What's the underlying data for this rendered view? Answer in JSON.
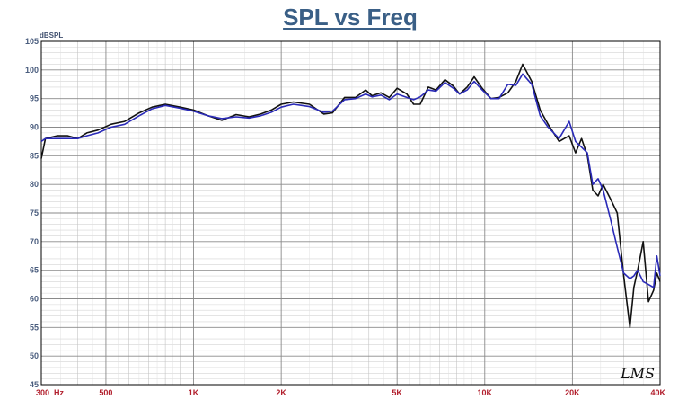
{
  "chart_data": {
    "type": "line",
    "title": "SPL vs Freq",
    "ylabel": "dBSPL",
    "xscale": "log",
    "xlim": [
      300,
      40000
    ],
    "ylim": [
      45,
      105
    ],
    "grid": true,
    "y_ticks": [
      45,
      50,
      55,
      60,
      65,
      70,
      75,
      80,
      85,
      90,
      95,
      100,
      105
    ],
    "x_ticks": [
      {
        "value": 300,
        "label": "300  Hz"
      },
      {
        "value": 500,
        "label": "500"
      },
      {
        "value": 1000,
        "label": "1K"
      },
      {
        "value": 2000,
        "label": "2K"
      },
      {
        "value": 5000,
        "label": "5K"
      },
      {
        "value": 10000,
        "label": "10K"
      },
      {
        "value": 20000,
        "label": "20K"
      },
      {
        "value": 40000,
        "label": "40K"
      }
    ],
    "watermark": "LMS",
    "series": [
      {
        "color": "#111111",
        "points": [
          [
            300,
            84.5
          ],
          [
            310,
            88
          ],
          [
            340,
            88.5
          ],
          [
            370,
            88.5
          ],
          [
            400,
            88
          ],
          [
            430,
            89
          ],
          [
            470,
            89.5
          ],
          [
            520,
            90.5
          ],
          [
            580,
            91
          ],
          [
            650,
            92.5
          ],
          [
            720,
            93.5
          ],
          [
            800,
            94
          ],
          [
            900,
            93.5
          ],
          [
            1000,
            93
          ],
          [
            1120,
            92
          ],
          [
            1250,
            91.2
          ],
          [
            1400,
            92.2
          ],
          [
            1550,
            91.8
          ],
          [
            1700,
            92.3
          ],
          [
            1850,
            93
          ],
          [
            2000,
            94
          ],
          [
            2200,
            94.4
          ],
          [
            2500,
            94
          ],
          [
            2800,
            92.3
          ],
          [
            3000,
            92.5
          ],
          [
            3300,
            95.2
          ],
          [
            3600,
            95.2
          ],
          [
            3900,
            96.5
          ],
          [
            4100,
            95.5
          ],
          [
            4400,
            96
          ],
          [
            4700,
            95.2
          ],
          [
            5000,
            96.8
          ],
          [
            5400,
            95.8
          ],
          [
            5700,
            94
          ],
          [
            6000,
            94
          ],
          [
            6400,
            97
          ],
          [
            6800,
            96.5
          ],
          [
            7300,
            98.3
          ],
          [
            7800,
            97.2
          ],
          [
            8200,
            95.8
          ],
          [
            8700,
            97
          ],
          [
            9200,
            98.8
          ],
          [
            9800,
            96.8
          ],
          [
            10500,
            95
          ],
          [
            11200,
            95.2
          ],
          [
            12000,
            96
          ],
          [
            12800,
            98
          ],
          [
            13500,
            101
          ],
          [
            14500,
            98
          ],
          [
            15500,
            93
          ],
          [
            16500,
            90.5
          ],
          [
            18000,
            87.5
          ],
          [
            19500,
            88.5
          ],
          [
            20500,
            85.5
          ],
          [
            21500,
            88
          ],
          [
            22500,
            85
          ],
          [
            23500,
            79
          ],
          [
            24500,
            78
          ],
          [
            25500,
            80
          ],
          [
            27000,
            77.5
          ],
          [
            28500,
            75
          ],
          [
            30000,
            64
          ],
          [
            31500,
            55
          ],
          [
            32500,
            62
          ],
          [
            33500,
            65
          ],
          [
            35000,
            70
          ],
          [
            36500,
            59.5
          ],
          [
            38000,
            61.5
          ],
          [
            39000,
            64.5
          ],
          [
            40000,
            63
          ]
        ]
      },
      {
        "color": "#2a2ab8",
        "points": [
          [
            300,
            87.5
          ],
          [
            310,
            88
          ],
          [
            340,
            88
          ],
          [
            370,
            88
          ],
          [
            400,
            88
          ],
          [
            430,
            88.5
          ],
          [
            470,
            89
          ],
          [
            520,
            90
          ],
          [
            580,
            90.5
          ],
          [
            650,
            92
          ],
          [
            720,
            93.2
          ],
          [
            800,
            93.8
          ],
          [
            900,
            93.3
          ],
          [
            1000,
            92.8
          ],
          [
            1120,
            92
          ],
          [
            1250,
            91.5
          ],
          [
            1400,
            91.8
          ],
          [
            1550,
            91.6
          ],
          [
            1700,
            92
          ],
          [
            1850,
            92.6
          ],
          [
            2000,
            93.5
          ],
          [
            2200,
            94
          ],
          [
            2500,
            93.6
          ],
          [
            2800,
            92.6
          ],
          [
            3000,
            92.8
          ],
          [
            3300,
            94.8
          ],
          [
            3600,
            95
          ],
          [
            3900,
            95.8
          ],
          [
            4100,
            95.3
          ],
          [
            4400,
            95.6
          ],
          [
            4700,
            94.8
          ],
          [
            5000,
            95.8
          ],
          [
            5400,
            95.2
          ],
          [
            5700,
            94.8
          ],
          [
            6000,
            95.3
          ],
          [
            6400,
            96.5
          ],
          [
            6800,
            96.3
          ],
          [
            7300,
            97.8
          ],
          [
            7800,
            96.8
          ],
          [
            8200,
            95.8
          ],
          [
            8700,
            96.5
          ],
          [
            9200,
            98
          ],
          [
            9800,
            96.5
          ],
          [
            10500,
            95
          ],
          [
            11200,
            95
          ],
          [
            12000,
            97.5
          ],
          [
            12800,
            97.3
          ],
          [
            13500,
            99.3
          ],
          [
            14500,
            97.5
          ],
          [
            15500,
            92
          ],
          [
            16500,
            90
          ],
          [
            18000,
            88
          ],
          [
            19500,
            91
          ],
          [
            20500,
            87.5
          ],
          [
            21500,
            86.5
          ],
          [
            22500,
            85.5
          ],
          [
            23500,
            80
          ],
          [
            24500,
            81
          ],
          [
            25500,
            79
          ],
          [
            27000,
            74
          ],
          [
            28500,
            69
          ],
          [
            30000,
            64.5
          ],
          [
            31500,
            63.5
          ],
          [
            32500,
            64
          ],
          [
            33500,
            65
          ],
          [
            35000,
            63
          ],
          [
            36500,
            62.5
          ],
          [
            38000,
            62
          ],
          [
            39000,
            67.5
          ],
          [
            40000,
            64
          ]
        ]
      }
    ]
  }
}
